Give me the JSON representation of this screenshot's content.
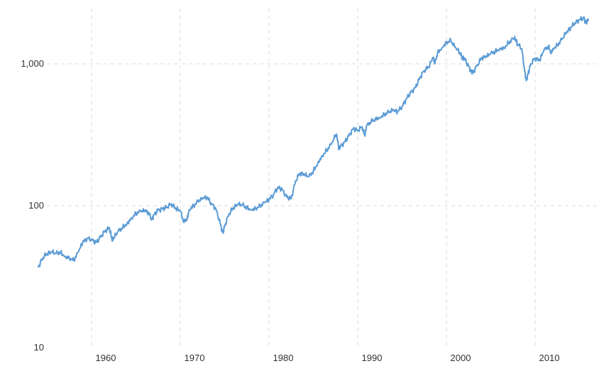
{
  "chart_data": {
    "type": "line",
    "title": "",
    "xlabel": "",
    "ylabel": "",
    "y_scale": "log",
    "ylim": [
      10,
      2300
    ],
    "xlim": [
      1954,
      2016.2
    ],
    "grid": true,
    "legend": "none",
    "line_color": "#5b9bd5",
    "grid_color": "#d9d9d9",
    "x_ticks": [
      {
        "value": 1960,
        "label": "1960"
      },
      {
        "value": 1970,
        "label": "1970"
      },
      {
        "value": 1980,
        "label": "1980"
      },
      {
        "value": 1990,
        "label": "1990"
      },
      {
        "value": 2000,
        "label": "2000"
      },
      {
        "value": 2010,
        "label": "2010"
      }
    ],
    "y_ticks": [
      {
        "value": 10,
        "label": "10"
      },
      {
        "value": 100,
        "label": "100"
      },
      {
        "value": 1000,
        "label": "1,000"
      }
    ],
    "series": [
      {
        "x": [
          1954.0,
          1954.5,
          1955.0,
          1955.5,
          1956.0,
          1956.5,
          1957.0,
          1957.5,
          1958.0,
          1958.5,
          1959.0,
          1959.5,
          1960.0,
          1960.5,
          1961.0,
          1961.5,
          1962.0,
          1962.3,
          1962.5,
          1963.0,
          1963.5,
          1964.0,
          1964.5,
          1965.0,
          1965.5,
          1966.0,
          1966.4,
          1966.8,
          1967.0,
          1967.5,
          1968.0,
          1968.5,
          1969.0,
          1969.5,
          1970.0,
          1970.4,
          1970.8,
          1971.0,
          1971.5,
          1972.0,
          1972.5,
          1973.0,
          1973.5,
          1974.0,
          1974.5,
          1974.8,
          1975.0,
          1975.5,
          1976.0,
          1976.5,
          1977.0,
          1977.5,
          1978.0,
          1978.5,
          1979.0,
          1979.5,
          1980.0,
          1980.5,
          1981.0,
          1981.5,
          1982.0,
          1982.5,
          1983.0,
          1983.5,
          1984.0,
          1984.5,
          1985.0,
          1985.5,
          1986.0,
          1986.5,
          1987.0,
          1987.6,
          1987.9,
          1988.0,
          1988.5,
          1989.0,
          1989.5,
          1990.0,
          1990.5,
          1990.8,
          1991.0,
          1991.5,
          1992.0,
          1992.5,
          1993.0,
          1993.5,
          1994.0,
          1994.5,
          1995.0,
          1995.5,
          1996.0,
          1996.5,
          1997.0,
          1997.5,
          1998.0,
          1998.5,
          1998.7,
          1999.0,
          1999.5,
          2000.0,
          2000.5,
          2001.0,
          2001.5,
          2001.8,
          2002.0,
          2002.5,
          2002.8,
          2003.0,
          2003.5,
          2004.0,
          2004.5,
          2005.0,
          2005.5,
          2006.0,
          2006.5,
          2007.0,
          2007.5,
          2007.8,
          2008.0,
          2008.5,
          2008.8,
          2009.0,
          2009.2,
          2009.5,
          2010.0,
          2010.5,
          2011.0,
          2011.5,
          2011.8,
          2012.0,
          2012.5,
          2013.0,
          2013.5,
          2014.0,
          2014.5,
          2015.0,
          2015.5,
          2015.7,
          2016.0
        ],
        "y": [
          37,
          43,
          46,
          47,
          46,
          47,
          44,
          43,
          41,
          47,
          55,
          59,
          58,
          55,
          60,
          66,
          70,
          58,
          59,
          66,
          70,
          75,
          82,
          88,
          91,
          92,
          90,
          80,
          86,
          93,
          95,
          98,
          103,
          95,
          92,
          76,
          82,
          94,
          100,
          107,
          112,
          115,
          104,
          96,
          75,
          64,
          72,
          88,
          97,
          102,
          101,
          97,
          94,
          96,
          99,
          105,
          110,
          120,
          135,
          130,
          115,
          112,
          150,
          170,
          165,
          160,
          175,
          200,
          225,
          245,
          270,
          320,
          250,
          260,
          280,
          310,
          350,
          340,
          360,
          310,
          365,
          390,
          410,
          420,
          440,
          455,
          470,
          460,
          500,
          570,
          630,
          680,
          800,
          900,
          950,
          1110,
          1000,
          1200,
          1300,
          1420,
          1450,
          1300,
          1200,
          1100,
          1100,
          960,
          880,
          870,
          990,
          1110,
          1120,
          1180,
          1220,
          1280,
          1300,
          1400,
          1500,
          1490,
          1380,
          1280,
          900,
          760,
          850,
          1000,
          1100,
          1050,
          1250,
          1320,
          1200,
          1280,
          1350,
          1480,
          1650,
          1800,
          1950,
          2050,
          2100,
          1950,
          2050
        ]
      }
    ]
  }
}
